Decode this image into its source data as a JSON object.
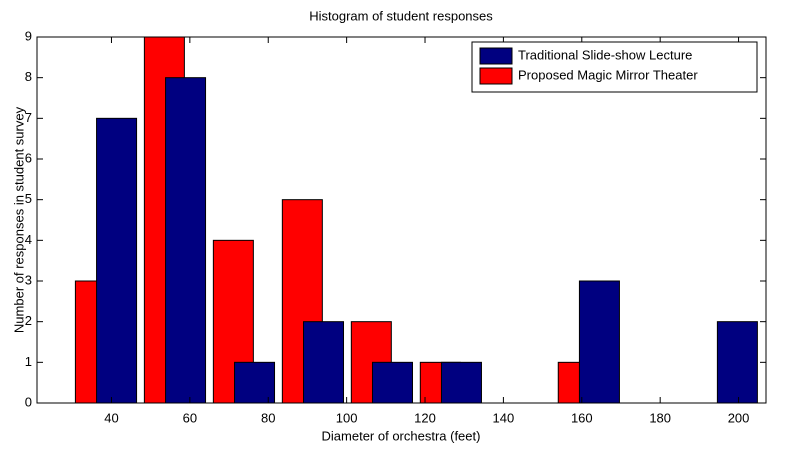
{
  "chart_data": {
    "type": "bar",
    "title": "Histogram of student responses",
    "xlabel": "Diameter of orchestra (feet)",
    "ylabel": "Number of responses in student survey",
    "series": [
      {
        "name": "Proposed Magic Mirror Theater",
        "color": "#ff0000",
        "x": [
          35.9,
          53.5,
          71.1,
          88.7,
          106.3,
          123.9,
          141.5,
          159.1,
          176.7,
          194.3
        ],
        "values": [
          3,
          9,
          4,
          5,
          2,
          1,
          0,
          1,
          0,
          0
        ]
      },
      {
        "name": "Traditional Slide-show Lecture",
        "color": "#000080",
        "x": [
          41.3,
          58.9,
          76.5,
          94.1,
          111.7,
          129.3,
          146.9,
          164.5,
          182.1,
          199.7
        ],
        "values": [
          7,
          8,
          1,
          2,
          1,
          1,
          0,
          3,
          0,
          2
        ]
      }
    ],
    "legend_order": [
      1,
      0
    ],
    "xlim": [
      21,
      207
    ],
    "xticks": [
      40,
      60,
      80,
      100,
      120,
      140,
      160,
      180,
      200
    ],
    "ylim": [
      0,
      9
    ],
    "yticks": [
      0,
      1,
      2,
      3,
      4,
      5,
      6,
      7,
      8,
      9
    ],
    "legend": "upper right"
  }
}
